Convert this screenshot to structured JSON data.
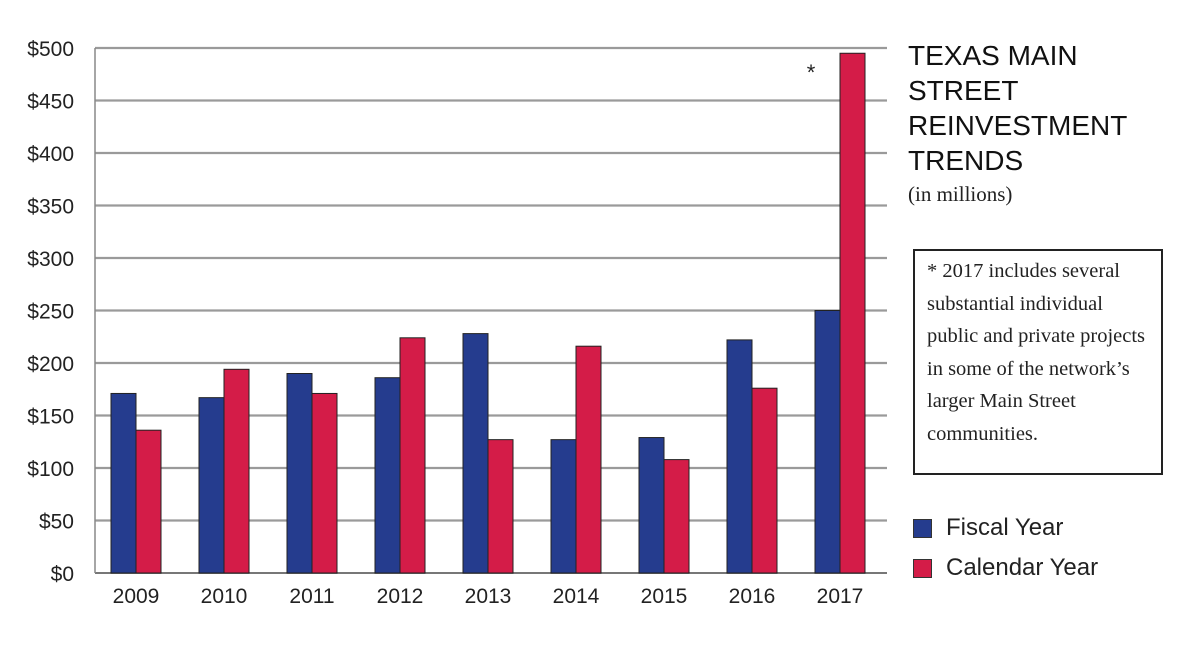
{
  "chart_data": {
    "type": "bar",
    "title": "TEXAS MAIN STREET REINVESTMENT TRENDS",
    "subtitle": "(in millions)",
    "categories": [
      "2009",
      "2010",
      "2011",
      "2012",
      "2013",
      "2014",
      "2015",
      "2016",
      "2017"
    ],
    "series": [
      {
        "name": "Fiscal Year",
        "color": "#253c8e",
        "values": [
          171,
          167,
          190,
          186,
          228,
          127,
          129,
          222,
          250
        ]
      },
      {
        "name": "Calendar Year",
        "color": "#d41c48",
        "values": [
          136,
          194,
          171,
          224,
          127,
          216,
          108,
          176,
          495
        ]
      }
    ],
    "ylim": [
      0,
      500
    ],
    "yticks": [
      0,
      50,
      100,
      150,
      200,
      250,
      300,
      350,
      400,
      450,
      500
    ],
    "ytick_labels": [
      "$0",
      "$50",
      "$100",
      "$150",
      "$200",
      "$250",
      "$300",
      "$350",
      "$400",
      "$450",
      "$500"
    ],
    "grid": true,
    "legend_position": "right",
    "annotation_marker": "*",
    "annotation_marker_category": "2017",
    "annotation_text": "* 2017 includes several substantial individual public and private projects in some of the network’s larger Main Street communities."
  }
}
